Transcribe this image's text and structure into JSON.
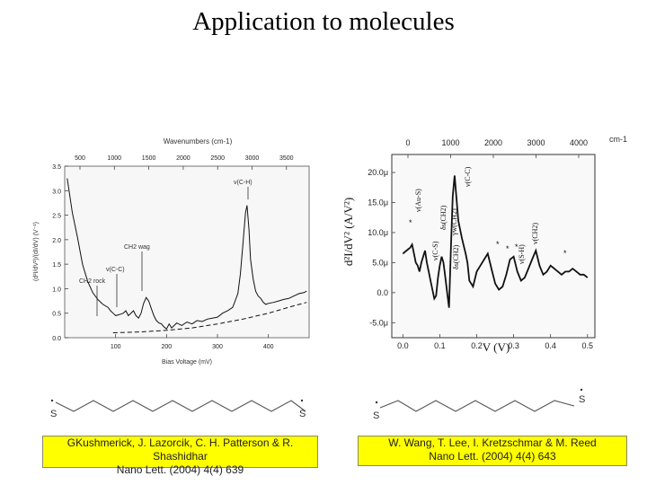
{
  "slide": {
    "title": "Application to molecules"
  },
  "chart_data": [
    {
      "type": "line",
      "title": "",
      "top_axis_label": "Wavenumbers (cm-1)",
      "top_ticks": [
        "500",
        "1000",
        "1500",
        "2000",
        "2500",
        "3000",
        "3500"
      ],
      "xlabel": "Bias Voltage (mV)",
      "ylabel": "(d²I/dV²)/(dI/dV) (V⁻¹)",
      "xlim": [
        0,
        480
      ],
      "ylim": [
        0,
        3.5
      ],
      "x_ticks": [
        "100",
        "200",
        "300",
        "400"
      ],
      "y_ticks": [
        "0.0",
        "0.5",
        "1.0",
        "1.5",
        "2.0",
        "2.5",
        "3.0",
        "3.5"
      ],
      "series": [
        {
          "style": "solid",
          "x": [
            5,
            15,
            25,
            35,
            45,
            55,
            65,
            75,
            85,
            90,
            95,
            100,
            110,
            115,
            120,
            125,
            130,
            135,
            140,
            145,
            150,
            155,
            160,
            165,
            170,
            175,
            180,
            185,
            190,
            195,
            200,
            205,
            210,
            220,
            230,
            240,
            250,
            260,
            270,
            280,
            290,
            300,
            310,
            320,
            330,
            340,
            345,
            350,
            355,
            358,
            362,
            365,
            370,
            375,
            380,
            385,
            390,
            395,
            400,
            410,
            420,
            430,
            440,
            450,
            460,
            470,
            475
          ],
          "y": [
            3.25,
            2.55,
            2.05,
            1.5,
            1.15,
            0.92,
            0.78,
            0.68,
            0.62,
            0.55,
            0.5,
            0.45,
            0.48,
            0.5,
            0.55,
            0.45,
            0.5,
            0.55,
            0.45,
            0.4,
            0.5,
            0.7,
            0.82,
            0.75,
            0.6,
            0.45,
            0.35,
            0.3,
            0.28,
            0.22,
            0.18,
            0.28,
            0.2,
            0.3,
            0.25,
            0.32,
            0.28,
            0.35,
            0.33,
            0.38,
            0.4,
            0.42,
            0.5,
            0.55,
            0.62,
            0.9,
            1.3,
            1.9,
            2.55,
            2.7,
            2.2,
            1.6,
            1.2,
            0.95,
            0.85,
            0.8,
            0.72,
            0.68,
            0.7,
            0.72,
            0.75,
            0.78,
            0.8,
            0.85,
            0.9,
            0.92,
            0.95
          ]
        },
        {
          "style": "dashed",
          "x": [
            95,
            150,
            200,
            250,
            300,
            350,
            400,
            450,
            475
          ],
          "y": [
            0.1,
            0.12,
            0.15,
            0.2,
            0.28,
            0.38,
            0.5,
            0.65,
            0.72
          ]
        }
      ],
      "annotations": [
        "ν(C-H)",
        "CH2 wag",
        "ν(C-C)",
        "CH2 rock"
      ]
    },
    {
      "type": "line",
      "title": "",
      "top_axis_label": "cm-1",
      "top_ticks": [
        "0",
        "1000",
        "2000",
        "3000",
        "4000"
      ],
      "xlabel": "V (V)",
      "ylabel": "d²I/dV² (A/V²)",
      "xlim": [
        -0.03,
        0.52
      ],
      "ylim": [
        -7.5,
        23
      ],
      "x_ticks": [
        "0.0",
        "0.1",
        "0.2",
        "0.3",
        "0.4",
        "0.5"
      ],
      "y_ticks": [
        "-5.0μ",
        "0.0",
        "5.0μ",
        "10.0μ",
        "15.0μ",
        "20.0μ"
      ],
      "series": [
        {
          "style": "solid",
          "x": [
            0.0,
            0.01,
            0.02,
            0.025,
            0.03,
            0.035,
            0.04,
            0.045,
            0.05,
            0.055,
            0.06,
            0.065,
            0.07,
            0.075,
            0.08,
            0.085,
            0.09,
            0.095,
            0.1,
            0.105,
            0.11,
            0.115,
            0.12,
            0.125,
            0.13,
            0.135,
            0.14,
            0.15,
            0.16,
            0.17,
            0.175,
            0.18,
            0.19,
            0.2,
            0.21,
            0.22,
            0.23,
            0.24,
            0.25,
            0.26,
            0.27,
            0.28,
            0.29,
            0.3,
            0.31,
            0.32,
            0.33,
            0.34,
            0.35,
            0.36,
            0.37,
            0.38,
            0.39,
            0.4,
            0.41,
            0.42,
            0.43,
            0.44,
            0.45,
            0.46,
            0.47,
            0.48,
            0.49,
            0.5
          ],
          "y": [
            6.5,
            7.0,
            7.5,
            8.0,
            6.5,
            5.0,
            4.5,
            3.5,
            5.0,
            6.0,
            7.0,
            5.0,
            3.5,
            2.0,
            0.5,
            -1.0,
            -0.5,
            2.5,
            4.5,
            6.0,
            5.0,
            2.5,
            0.0,
            -2.5,
            7.0,
            16.0,
            19.5,
            12.0,
            9.0,
            6.5,
            5.0,
            2.0,
            1.0,
            3.5,
            4.5,
            5.5,
            6.5,
            4.0,
            1.5,
            0.5,
            1.0,
            3.0,
            5.5,
            6.0,
            3.5,
            2.0,
            2.5,
            4.0,
            5.5,
            7.0,
            4.5,
            3.0,
            3.5,
            4.5,
            4.0,
            3.5,
            3.0,
            3.5,
            3.5,
            4.0,
            3.5,
            3.0,
            3.0,
            2.5
          ]
        }
      ],
      "annotations": [
        "ν(Au-S)",
        "ν(C-S)",
        "δs(CH2)",
        "γw(CH2)",
        "δs(CH2)",
        "ν(C-C)",
        "ν(S-H)",
        "ν(CH2)"
      ]
    }
  ],
  "references": [
    {
      "lines": [
        "GKushmerick, J. Lazorcik, C. H. Patterson & R.",
        "Shashidhar",
        "Nano Lett. (2004) 4(4) 639"
      ]
    },
    {
      "lines": [
        "W. Wang, T. Lee, I. Kretzschmar & M. Reed",
        "Nano Lett. (2004) 4(4) 643"
      ]
    }
  ],
  "molecules": [
    {
      "labels": [
        "S",
        "S"
      ]
    },
    {
      "labels": [
        "S",
        "S"
      ]
    }
  ],
  "colors": {
    "highlight": "#ffff00",
    "line": "#000000",
    "tick": "#666666"
  }
}
